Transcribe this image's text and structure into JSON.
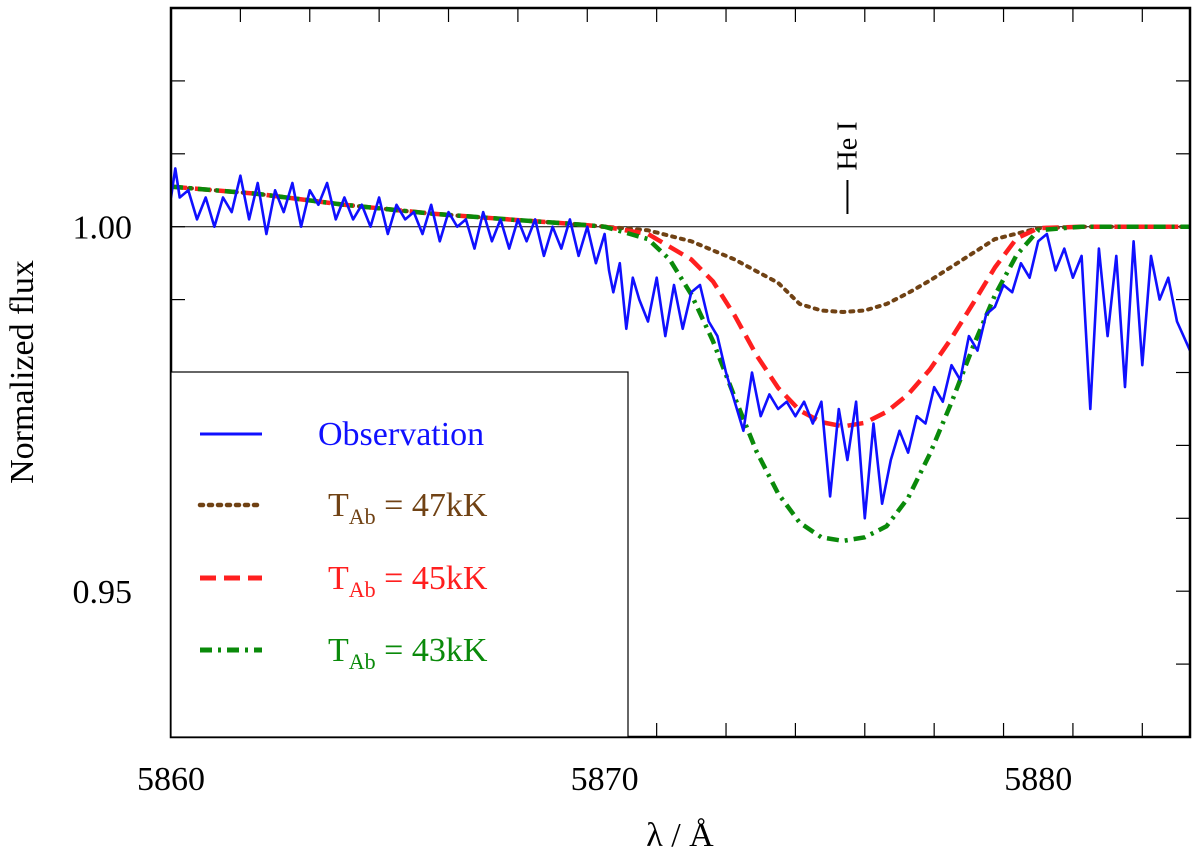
{
  "chart_data": {
    "type": "line",
    "xlabel": "λ / Å",
    "ylabel": "Normalized flux",
    "xlim": [
      5860,
      5883.5
    ],
    "ylim": [
      0.93,
      1.03
    ],
    "x_ticks": [
      5860,
      5870,
      5880
    ],
    "x_tick_labels": [
      "5860",
      "5870",
      "5880"
    ],
    "y_ticks": [
      0.95,
      1.0
    ],
    "y_tick_labels": [
      "0.95",
      "1.00"
    ],
    "x_minor_step": 1.6,
    "y_minor_step": 0.01,
    "reference_line_y": 1.0,
    "grid": false,
    "legend_position": "bottom-left",
    "annotation": {
      "text": "He I",
      "x": 5875.6,
      "y": 1.0
    },
    "series": [
      {
        "name": "Observation",
        "color": "#1010ff",
        "style": "solid",
        "x": [
          5860.0,
          5860.1,
          5860.2,
          5860.4,
          5860.6,
          5860.8,
          5861.0,
          5861.2,
          5861.4,
          5861.6,
          5861.8,
          5862.0,
          5862.2,
          5862.4,
          5862.6,
          5862.8,
          5863.0,
          5863.2,
          5863.4,
          5863.6,
          5863.8,
          5864.0,
          5864.2,
          5864.4,
          5864.6,
          5864.8,
          5865.0,
          5865.2,
          5865.4,
          5865.6,
          5865.8,
          5866.0,
          5866.2,
          5866.4,
          5866.6,
          5866.8,
          5867.0,
          5867.2,
          5867.4,
          5867.6,
          5867.8,
          5868.0,
          5868.2,
          5868.4,
          5868.6,
          5868.8,
          5869.0,
          5869.2,
          5869.4,
          5869.6,
          5869.8,
          5870.0,
          5870.1,
          5870.2,
          5870.35,
          5870.5,
          5870.65,
          5870.8,
          5871.0,
          5871.2,
          5871.4,
          5871.6,
          5871.8,
          5872.0,
          5872.2,
          5872.4,
          5872.6,
          5872.8,
          5873.0,
          5873.2,
          5873.4,
          5873.6,
          5873.8,
          5874.0,
          5874.2,
          5874.4,
          5874.6,
          5874.8,
          5875.0,
          5875.2,
          5875.4,
          5875.6,
          5875.8,
          5876.0,
          5876.2,
          5876.4,
          5876.6,
          5876.8,
          5877.0,
          5877.2,
          5877.4,
          5877.6,
          5877.8,
          5878.0,
          5878.2,
          5878.4,
          5878.6,
          5878.8,
          5879.0,
          5879.2,
          5879.4,
          5879.6,
          5879.8,
          5880.0,
          5880.2,
          5880.4,
          5880.6,
          5880.8,
          5881.0,
          5881.2,
          5881.4,
          5881.6,
          5881.8,
          5882.0,
          5882.2,
          5882.4,
          5882.6,
          5882.8,
          5883.0,
          5883.2,
          5883.5
        ],
        "y": [
          1.004,
          1.008,
          1.004,
          1.005,
          1.001,
          1.004,
          1.0,
          1.004,
          1.002,
          1.007,
          1.001,
          1.006,
          0.999,
          1.005,
          1.002,
          1.006,
          1.0,
          1.005,
          1.003,
          1.006,
          1.001,
          1.004,
          1.001,
          1.003,
          1.0,
          1.004,
          0.999,
          1.003,
          1.001,
          1.002,
          0.999,
          1.003,
          0.998,
          1.002,
          1.0,
          1.001,
          0.997,
          1.002,
          0.998,
          1.001,
          0.997,
          1.001,
          0.998,
          1.001,
          0.996,
          1.0,
          0.997,
          1.001,
          0.996,
          1.0,
          0.995,
          0.999,
          0.994,
          0.991,
          0.995,
          0.986,
          0.993,
          0.99,
          0.987,
          0.993,
          0.985,
          0.992,
          0.986,
          0.991,
          0.992,
          0.987,
          0.985,
          0.98,
          0.976,
          0.972,
          0.98,
          0.974,
          0.977,
          0.975,
          0.976,
          0.974,
          0.976,
          0.973,
          0.976,
          0.963,
          0.975,
          0.968,
          0.976,
          0.96,
          0.973,
          0.962,
          0.968,
          0.972,
          0.969,
          0.974,
          0.973,
          0.978,
          0.976,
          0.981,
          0.979,
          0.985,
          0.983,
          0.988,
          0.989,
          0.992,
          0.991,
          0.995,
          0.993,
          0.998,
          0.999,
          0.994,
          0.997,
          0.993,
          0.996,
          0.975,
          0.997,
          0.985,
          0.996,
          0.978,
          0.998,
          0.981,
          0.996,
          0.99,
          0.993,
          0.987,
          0.983
        ]
      },
      {
        "name": "T_Ab = 47kK",
        "label_main": "T",
        "label_sub": "Ab",
        "label_rest": " = 47kK",
        "color": "#704214",
        "style": "dotted",
        "x": [
          5860,
          5862,
          5864,
          5866,
          5868,
          5869,
          5870,
          5871,
          5872,
          5873,
          5873.5,
          5874,
          5874.5,
          5875,
          5875.5,
          5876,
          5876.5,
          5877,
          5877.5,
          5878,
          5879,
          5880,
          5881,
          5882,
          5883.5
        ],
        "y": [
          1.0055,
          1.0045,
          1.003,
          1.0018,
          1.0009,
          1.0005,
          1.0,
          0.9995,
          0.998,
          0.9955,
          0.9939,
          0.9923,
          0.9894,
          0.9885,
          0.9883,
          0.9885,
          0.9894,
          0.9909,
          0.9926,
          0.9945,
          0.9983,
          0.9998,
          1.0,
          1.0,
          1.0
        ]
      },
      {
        "name": "T_Ab = 45kK",
        "label_main": "T",
        "label_sub": "Ab",
        "label_rest": " = 45kK",
        "color": "#ff1f1f",
        "style": "dashed",
        "x": [
          5860,
          5862,
          5864,
          5866,
          5868,
          5869,
          5870,
          5871,
          5872,
          5872.5,
          5873,
          5873.5,
          5874,
          5874.5,
          5875,
          5875.5,
          5876,
          5876.5,
          5877,
          5877.5,
          5878,
          5878.5,
          5879,
          5879.5,
          5880,
          5881,
          5882,
          5883.5
        ],
        "y": [
          1.0055,
          1.0045,
          1.003,
          1.0018,
          1.0009,
          1.0005,
          1.0,
          0.999,
          0.9955,
          0.9925,
          0.9878,
          0.9824,
          0.9779,
          0.9748,
          0.9732,
          0.9726,
          0.9731,
          0.9746,
          0.977,
          0.9804,
          0.9847,
          0.9895,
          0.9944,
          0.9984,
          0.9998,
          1.0,
          1.0,
          1.0
        ]
      },
      {
        "name": "T_Ab = 43kK",
        "label_main": "T",
        "label_sub": "Ab",
        "label_rest": " = 43kK",
        "color": "#0a8a0a",
        "style": "dashdot",
        "x": [
          5860,
          5862,
          5864,
          5866,
          5868,
          5869,
          5870,
          5871,
          5871.5,
          5872,
          5872.5,
          5873,
          5873.5,
          5874,
          5874.5,
          5875,
          5875.5,
          5876,
          5876.5,
          5877,
          5877.5,
          5878,
          5878.5,
          5879,
          5879.5,
          5880,
          5881,
          5882,
          5883.5
        ],
        "y": [
          1.0055,
          1.0045,
          1.003,
          1.0018,
          1.0009,
          1.0005,
          1.0,
          0.9983,
          0.9955,
          0.9907,
          0.9843,
          0.9766,
          0.9692,
          0.9634,
          0.9594,
          0.9574,
          0.9569,
          0.9574,
          0.9589,
          0.9628,
          0.9688,
          0.9759,
          0.9836,
          0.9906,
          0.9961,
          0.9995,
          1.0,
          1.0,
          1.0
        ]
      }
    ]
  }
}
